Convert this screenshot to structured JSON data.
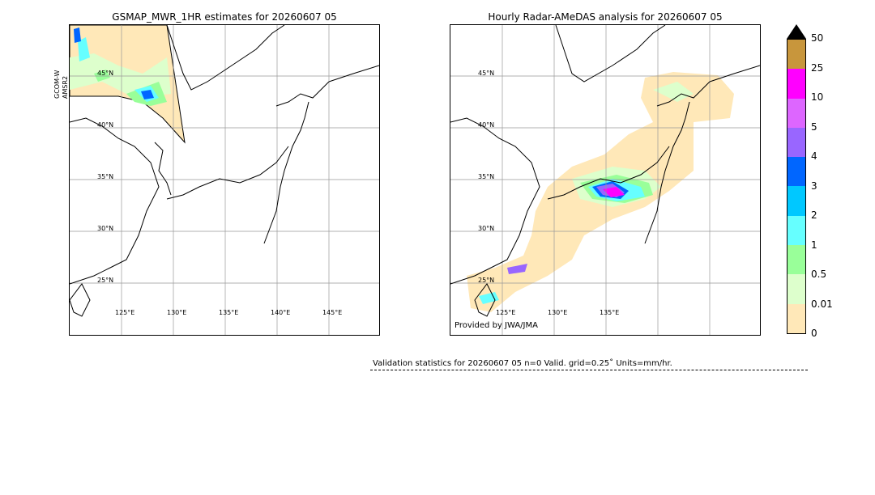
{
  "left_panel": {
    "title": "GSMAP_MWR_1HR estimates for 20260607 05",
    "side_label_1": "GCOM-W",
    "side_label_2": "AMSR2",
    "lat_labels": [
      "45°N",
      "40°N",
      "35°N",
      "30°N",
      "25°N"
    ],
    "lon_labels": [
      "125°E",
      "130°E",
      "135°E",
      "140°E",
      "145°E"
    ]
  },
  "right_panel": {
    "title": "Hourly Radar-AMeDAS analysis for 20260607 05",
    "credit": "Provided by JWA/JMA",
    "lat_labels": [
      "45°N",
      "40°N",
      "35°N",
      "30°N",
      "25°N"
    ],
    "lon_labels": [
      "125°E",
      "130°E",
      "135°E"
    ]
  },
  "colorbar": {
    "ticks": [
      "50",
      "25",
      "10",
      "5",
      "4",
      "3",
      "2",
      "1",
      "0.5",
      "0.01",
      "0"
    ],
    "colors": [
      "#c8963c",
      "#ff00ff",
      "#dd66ff",
      "#9966ff",
      "#0066ff",
      "#00c8ff",
      "#66ffff",
      "#99ff99",
      "#ddffcc",
      "#ffe8b8"
    ]
  },
  "validation": {
    "text": "Validation statistics for 20260607 05  n=0 Valid. grid=0.25˚ Units=mm/hr."
  }
}
